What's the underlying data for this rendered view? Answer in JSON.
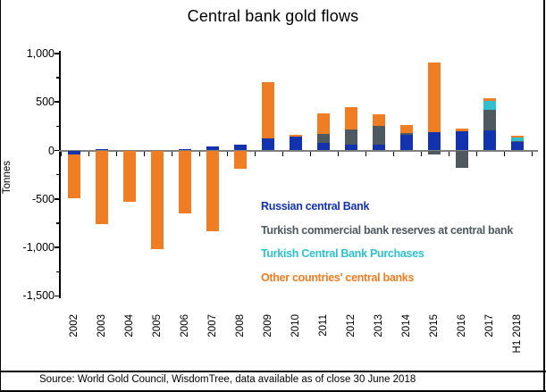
{
  "title": "Central bank gold flows",
  "source": "Source: World Gold Council, WisdomTree, data available as of close 30 June 2018",
  "chart_data": {
    "type": "bar",
    "stacked": true,
    "title": "Central bank gold flows",
    "xlabel": "",
    "ylabel": "Tonnes",
    "ylim": [
      -1500,
      1000
    ],
    "grid": false,
    "legend_position": "inside-right-middle",
    "y_ticks": [
      {
        "label": "1,000",
        "value": 1000
      },
      {
        "label": "500",
        "value": 500
      },
      {
        "label": "0",
        "value": 0
      },
      {
        "label": "-500",
        "value": -500
      },
      {
        "label": "-1,000",
        "value": -1000
      },
      {
        "label": "-1,500",
        "value": -1500
      }
    ],
    "y_minor_ticks": [
      750,
      250,
      -250,
      -750,
      -1250
    ],
    "categories": [
      "2002",
      "2003",
      "2004",
      "2005",
      "2006",
      "2007",
      "2008",
      "2009",
      "2010",
      "2011",
      "2012",
      "2013",
      "2014",
      "2015",
      "2016",
      "2017",
      "H1 2018"
    ],
    "series": [
      {
        "id": "russian-central-bank",
        "name": "Russian central Bank",
        "color": "#1333ae",
        "values": [
          -40,
          10,
          0,
          0,
          15,
          45,
          60,
          120,
          140,
          75,
          60,
          60,
          165,
          190,
          200,
          210,
          90
        ]
      },
      {
        "id": "turkish-commercial-reserves",
        "name": "Turkish commercial bank reserves at central bank",
        "color": "#4e5960",
        "values": [
          0,
          0,
          0,
          0,
          0,
          0,
          0,
          0,
          0,
          95,
          160,
          190,
          15,
          -40,
          -175,
          205,
          10
        ]
      },
      {
        "id": "turkish-central-bank-purchases",
        "name": "Turkish Central Bank Purchases",
        "color": "#2fc0cd",
        "values": [
          0,
          0,
          0,
          0,
          0,
          0,
          0,
          0,
          0,
          0,
          0,
          0,
          0,
          0,
          0,
          95,
          35
        ]
      },
      {
        "id": "other-countries-central-banks",
        "name": "Other countries' central banks",
        "color": "#ef7d23",
        "values": [
          -450,
          -760,
          -530,
          -1020,
          -650,
          -830,
          -190,
          580,
          25,
          210,
          225,
          120,
          85,
          720,
          25,
          25,
          20
        ]
      }
    ]
  }
}
